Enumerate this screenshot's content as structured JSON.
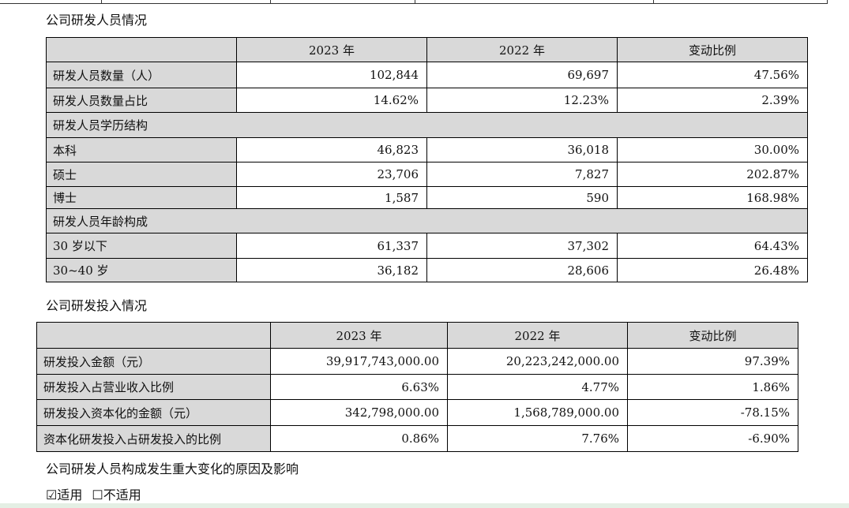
{
  "personnel": {
    "title": "公司研发人员情况",
    "headers": [
      "",
      "2023 年",
      "2022 年",
      "变动比例"
    ],
    "rows": [
      {
        "type": "data",
        "label": "研发人员数量（人）",
        "v2023": "102,844",
        "v2022": "69,697",
        "change": "47.56%"
      },
      {
        "type": "data",
        "label": "研发人员数量占比",
        "v2023": "14.62%",
        "v2022": "12.23%",
        "change": "2.39%"
      },
      {
        "type": "sub",
        "label": "研发人员学历结构"
      },
      {
        "type": "data",
        "label": "本科",
        "v2023": "46,823",
        "v2022": "36,018",
        "change": "30.00%"
      },
      {
        "type": "data",
        "label": "硕士",
        "v2023": "23,706",
        "v2022": "7,827",
        "change": "202.87%"
      },
      {
        "type": "data",
        "label": "博士",
        "v2023": "1,587",
        "v2022": "590",
        "change": "168.98%"
      },
      {
        "type": "sub",
        "label": "研发人员年龄构成"
      },
      {
        "type": "data",
        "label": "30 岁以下",
        "v2023": "61,337",
        "v2022": "37,302",
        "change": "64.43%"
      },
      {
        "type": "data",
        "label": "30~40 岁",
        "v2023": "36,182",
        "v2022": "28,606",
        "change": "26.48%"
      }
    ]
  },
  "investment": {
    "title": "公司研发投入情况",
    "headers": [
      "",
      "2023 年",
      "2022 年",
      "变动比例"
    ],
    "rows": [
      {
        "label": "研发投入金额（元）",
        "v2023": "39,917,743,000.00",
        "v2022": "20,223,242,000.00",
        "change": "97.39%"
      },
      {
        "label": "研发投入占营业收入比例",
        "v2023": "6.63%",
        "v2022": "4.77%",
        "change": "1.86%"
      },
      {
        "label": "研发投入资本化的金额（元）",
        "v2023": "342,798,000.00",
        "v2022": "1,568,789,000.00",
        "change": "-78.15%"
      },
      {
        "label": "资本化研发投入占研发投入的比例",
        "v2023": "0.86%",
        "v2022": "7.76%",
        "change": "-6.90%"
      }
    ]
  },
  "change_reason_title": "公司研发人员构成发生重大变化的原因及影响",
  "applicability": {
    "checked_mark": "☑",
    "applicable_label": "适用",
    "unchecked_mark": "☐",
    "not_applicable_label": "不适用"
  }
}
